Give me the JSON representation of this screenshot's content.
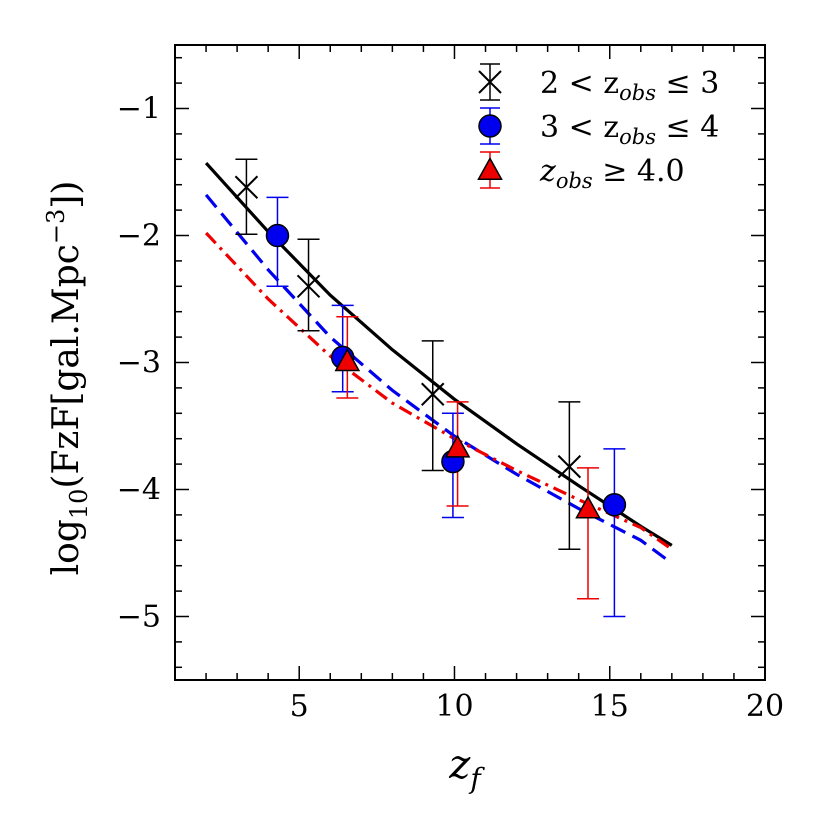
{
  "chart_data": {
    "type": "scatter",
    "title": "",
    "xlabel": {
      "base": "z",
      "sub": "f"
    },
    "ylabel": {
      "prefix": "log",
      "sub": "10",
      "main": "(FzF[gal.Mpc",
      "sup": "−3",
      "suffix": "])"
    },
    "xlim": [
      1,
      20
    ],
    "ylim": [
      -5.5,
      -0.5
    ],
    "xticks": [
      5,
      10,
      15,
      20
    ],
    "xtick_labels": [
      "5",
      "10",
      "15",
      "20"
    ],
    "yticks": [
      -1,
      -2,
      -3,
      -4,
      -5
    ],
    "ytick_labels": [
      "−1",
      "−2",
      "−3",
      "−4",
      "−5"
    ],
    "grid": false,
    "legend_position": "top-right",
    "series": [
      {
        "name": "2 < z_obs ≤ 3",
        "legend_parts": {
          "pre": "2 < z",
          "sub": "obs",
          "post": " ≤ 3"
        },
        "marker": "x",
        "color": "#000000",
        "line_style": "solid",
        "points": [
          {
            "x": 3.3,
            "y": -1.62,
            "ylo": -1.99,
            "yhi": -1.4
          },
          {
            "x": 5.3,
            "y": -2.4,
            "ylo": -2.75,
            "yhi": -2.03
          },
          {
            "x": 9.3,
            "y": -3.25,
            "ylo": -3.85,
            "yhi": -2.83
          },
          {
            "x": 13.7,
            "y": -3.82,
            "ylo": -4.47,
            "yhi": -3.31
          }
        ],
        "fit": {
          "x": [
            2,
            4,
            6,
            8,
            10,
            12,
            14,
            16,
            17
          ],
          "y": [
            -1.43,
            -1.97,
            -2.47,
            -2.9,
            -3.29,
            -3.64,
            -3.97,
            -4.29,
            -4.44
          ]
        }
      },
      {
        "name": "3 < z_obs ≤ 4",
        "legend_parts": {
          "pre": "3 < z",
          "sub": "obs",
          "post": " ≤ 4"
        },
        "marker": "circle",
        "color": "#0000ee",
        "line_style": "dashed",
        "points": [
          {
            "x": 4.3,
            "y": -2.0,
            "ylo": -2.4,
            "yhi": -1.7
          },
          {
            "x": 6.4,
            "y": -2.96,
            "ylo": -3.23,
            "yhi": -2.55
          },
          {
            "x": 9.95,
            "y": -3.78,
            "ylo": -4.22,
            "yhi": -3.4
          },
          {
            "x": 15.15,
            "y": -4.12,
            "ylo": -5.0,
            "yhi": -3.68
          }
        ],
        "fit": {
          "x": [
            2,
            4,
            6,
            8,
            10,
            12,
            14,
            16,
            17
          ],
          "y": [
            -1.68,
            -2.27,
            -2.8,
            -3.22,
            -3.58,
            -3.88,
            -4.15,
            -4.4,
            -4.58
          ]
        }
      },
      {
        "name": "z_obs ≥ 4.0",
        "legend_parts": {
          "pre": "z",
          "sub": "obs",
          "post": " ≥ 4.0"
        },
        "marker": "triangle",
        "color": "#ee0000",
        "line_style": "dashdot",
        "points": [
          {
            "x": 6.55,
            "y": -2.99,
            "ylo": -3.28,
            "yhi": -2.64
          },
          {
            "x": 10.1,
            "y": -3.67,
            "ylo": -4.13,
            "yhi": -3.31
          },
          {
            "x": 14.3,
            "y": -4.15,
            "ylo": -4.86,
            "yhi": -3.83
          }
        ],
        "fit": {
          "x": [
            2,
            4,
            6,
            8,
            10,
            12,
            14,
            16,
            17
          ],
          "y": [
            -1.98,
            -2.5,
            -2.95,
            -3.32,
            -3.6,
            -3.85,
            -4.08,
            -4.3,
            -4.47
          ]
        }
      }
    ]
  }
}
